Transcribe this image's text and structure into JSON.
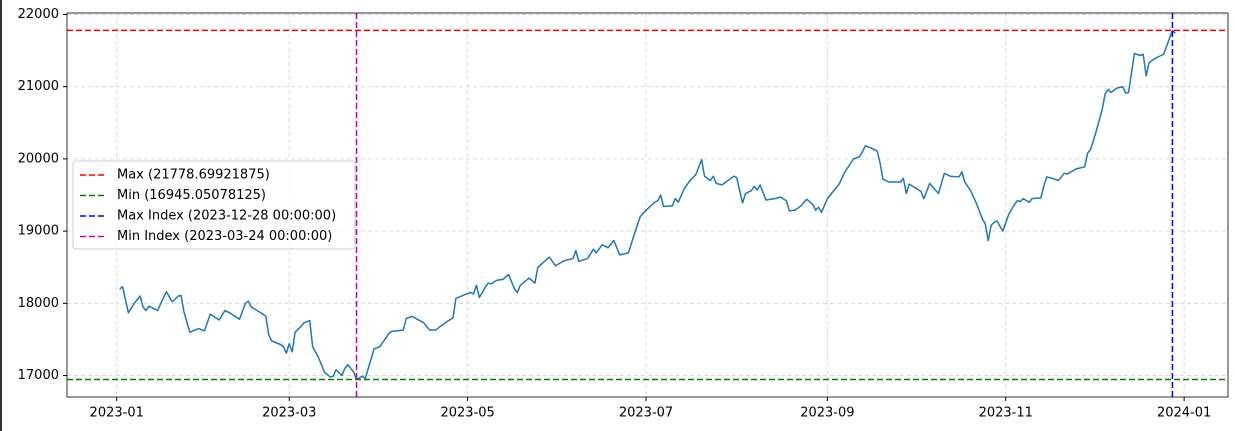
{
  "chart_data": {
    "type": "line",
    "color": "#1f77b4",
    "x": [
      "2023-01-02",
      "2023-01-03",
      "2023-01-04",
      "2023-01-05",
      "2023-01-07",
      "2023-01-09",
      "2023-01-10",
      "2023-01-11",
      "2023-01-12",
      "2023-01-15",
      "2023-01-17",
      "2023-01-18",
      "2023-01-20",
      "2023-01-22",
      "2023-01-23",
      "2023-01-24",
      "2023-01-26",
      "2023-01-29",
      "2023-01-31",
      "2023-02-02",
      "2023-02-05",
      "2023-02-07",
      "2023-02-09",
      "2023-02-12",
      "2023-02-14",
      "2023-02-15",
      "2023-02-16",
      "2023-02-20",
      "2023-02-21",
      "2023-02-22",
      "2023-02-23",
      "2023-02-26",
      "2023-02-27",
      "2023-02-28",
      "2023-03-01",
      "2023-03-02",
      "2023-03-03",
      "2023-03-05",
      "2023-03-06",
      "2023-03-08",
      "2023-03-09",
      "2023-03-11",
      "2023-03-13",
      "2023-03-15",
      "2023-03-16",
      "2023-03-17",
      "2023-03-19",
      "2023-03-20",
      "2023-03-21",
      "2023-03-23",
      "2023-03-24",
      "2023-03-26",
      "2023-03-27",
      "2023-03-30",
      "2023-04-01",
      "2023-04-04",
      "2023-04-05",
      "2023-04-09",
      "2023-04-10",
      "2023-04-12",
      "2023-04-16",
      "2023-04-18",
      "2023-04-20",
      "2023-04-23",
      "2023-04-26",
      "2023-04-27",
      "2023-04-30",
      "2023-05-02",
      "2023-05-03",
      "2023-05-04",
      "2023-05-05",
      "2023-05-07",
      "2023-05-08",
      "2023-05-09",
      "2023-05-11",
      "2023-05-13",
      "2023-05-15",
      "2023-05-17",
      "2023-05-18",
      "2023-05-19",
      "2023-05-22",
      "2023-05-24",
      "2023-05-25",
      "2023-05-29",
      "2023-05-31",
      "2023-06-03",
      "2023-06-06",
      "2023-06-07",
      "2023-06-08",
      "2023-06-11",
      "2023-06-13",
      "2023-06-14",
      "2023-06-16",
      "2023-06-18",
      "2023-06-20",
      "2023-06-22",
      "2023-06-25",
      "2023-06-27",
      "2023-06-29",
      "2023-07-01",
      "2023-07-04",
      "2023-07-05",
      "2023-07-06",
      "2023-07-07",
      "2023-07-10",
      "2023-07-11",
      "2023-07-12",
      "2023-07-14",
      "2023-07-16",
      "2023-07-18",
      "2023-07-20",
      "2023-07-21",
      "2023-07-23",
      "2023-07-24",
      "2023-07-25",
      "2023-07-27",
      "2023-07-29",
      "2023-07-31",
      "2023-08-01",
      "2023-08-03",
      "2023-08-04",
      "2023-08-06",
      "2023-08-07",
      "2023-08-08",
      "2023-08-09",
      "2023-08-11",
      "2023-08-14",
      "2023-08-16",
      "2023-08-18",
      "2023-08-19",
      "2023-08-21",
      "2023-08-23",
      "2023-08-24",
      "2023-08-25",
      "2023-08-27",
      "2023-08-28",
      "2023-08-29",
      "2023-08-30",
      "2023-09-01",
      "2023-09-03",
      "2023-09-05",
      "2023-09-07",
      "2023-09-09",
      "2023-09-10",
      "2023-09-12",
      "2023-09-13",
      "2023-09-14",
      "2023-09-16",
      "2023-09-18",
      "2023-09-19",
      "2023-09-20",
      "2023-09-22",
      "2023-09-24",
      "2023-09-26",
      "2023-09-27",
      "2023-09-28",
      "2023-09-29",
      "2023-10-01",
      "2023-10-03",
      "2023-10-04",
      "2023-10-06",
      "2023-10-09",
      "2023-10-11",
      "2023-10-13",
      "2023-10-16",
      "2023-10-17",
      "2023-10-18",
      "2023-10-20",
      "2023-10-22",
      "2023-10-24",
      "2023-10-25",
      "2023-10-26",
      "2023-10-27",
      "2023-10-28",
      "2023-10-29",
      "2023-10-31",
      "2023-11-02",
      "2023-11-04",
      "2023-11-05",
      "2023-11-06",
      "2023-11-07",
      "2023-11-09",
      "2023-11-10",
      "2023-11-13",
      "2023-11-14",
      "2023-11-15",
      "2023-11-17",
      "2023-11-19",
      "2023-11-21",
      "2023-11-22",
      "2023-11-25",
      "2023-11-28",
      "2023-11-29",
      "2023-11-30",
      "2023-12-02",
      "2023-12-04",
      "2023-12-05",
      "2023-12-06",
      "2023-12-07",
      "2023-12-09",
      "2023-12-11",
      "2023-12-12",
      "2023-12-13",
      "2023-12-15",
      "2023-12-17",
      "2023-12-18",
      "2023-12-19",
      "2023-12-20",
      "2023-12-22",
      "2023-12-24",
      "2023-12-25",
      "2023-12-28",
      "2023-12-29"
    ],
    "values": [
      18200,
      18230,
      18050,
      17870,
      18000,
      18100,
      17950,
      17900,
      17960,
      17900,
      18080,
      18160,
      18020,
      18100,
      18110,
      17880,
      17600,
      17650,
      17620,
      17850,
      17770,
      17900,
      17860,
      17780,
      18000,
      18030,
      17950,
      17850,
      17820,
      17560,
      17480,
      17430,
      17400,
      17310,
      17440,
      17330,
      17600,
      17680,
      17730,
      17760,
      17400,
      17250,
      17050,
      16980,
      16990,
      17080,
      17000,
      17100,
      17150,
      17050,
      16945.05078125,
      16990,
      16960,
      17370,
      17400,
      17580,
      17610,
      17630,
      17790,
      17820,
      17730,
      17630,
      17630,
      17720,
      17800,
      18070,
      18120,
      18150,
      18130,
      18250,
      18080,
      18220,
      18280,
      18270,
      18320,
      18330,
      18400,
      18200,
      18150,
      18250,
      18350,
      18280,
      18500,
      18640,
      18520,
      18590,
      18620,
      18730,
      18580,
      18620,
      18750,
      18700,
      18810,
      18770,
      18870,
      18670,
      18700,
      18960,
      19200,
      19290,
      19400,
      19420,
      19500,
      19340,
      19350,
      19450,
      19400,
      19580,
      19700,
      19780,
      19990,
      19760,
      19700,
      19760,
      19660,
      19640,
      19700,
      19760,
      19740,
      19390,
      19520,
      19560,
      19620,
      19570,
      19640,
      19430,
      19450,
      19470,
      19420,
      19280,
      19290,
      19350,
      19400,
      19440,
      19370,
      19290,
      19330,
      19260,
      19450,
      19550,
      19650,
      19820,
      19940,
      20000,
      20030,
      20100,
      20180,
      20150,
      20110,
      19950,
      19720,
      19680,
      19680,
      19680,
      19730,
      19520,
      19650,
      19600,
      19550,
      19450,
      19660,
      19520,
      19800,
      19760,
      19750,
      19820,
      19680,
      19560,
      19380,
      19170,
      19100,
      18870,
      19080,
      19120,
      19140,
      19000,
      19230,
      19370,
      19420,
      19410,
      19450,
      19400,
      19450,
      19460,
      19620,
      19750,
      19730,
      19700,
      19800,
      19790,
      19860,
      19890,
      20080,
      20130,
      20390,
      20690,
      20900,
      20960,
      20920,
      20980,
      21000,
      20910,
      20920,
      21460,
      21430,
      21450,
      21150,
      21330,
      21390,
      21430,
      21450,
      21778.69921875,
      21740
    ],
    "xlim": [
      "2022-12-15",
      "2024-01-16"
    ],
    "xticks": [
      {
        "value": "2023-01-01",
        "label": "2023-01"
      },
      {
        "value": "2023-03-01",
        "label": "2023-03"
      },
      {
        "value": "2023-05-01",
        "label": "2023-05"
      },
      {
        "value": "2023-07-01",
        "label": "2023-07"
      },
      {
        "value": "2023-09-01",
        "label": "2023-09"
      },
      {
        "value": "2023-11-01",
        "label": "2023-11"
      },
      {
        "value": "2024-01-01",
        "label": "2024-01"
      }
    ],
    "ylim": [
      16703,
      22020
    ],
    "yticks": [
      17000,
      18000,
      19000,
      20000,
      21000,
      22000
    ],
    "grid": true,
    "legend": "center left",
    "reference_lines": [
      {
        "label": "Max (21778.69921875)",
        "value": 21778.69921875,
        "orientation": "horizontal",
        "color": "#ff0000"
      },
      {
        "label": "Min (16945.05078125)",
        "value": 16945.05078125,
        "orientation": "horizontal",
        "color": "#008000"
      },
      {
        "label": "Max Index (2023-12-28 00:00:00)",
        "value": "2023-12-28",
        "orientation": "vertical",
        "color": "#0000ff"
      },
      {
        "label": "Min Index (2023-03-24 00:00:00)",
        "value": "2023-03-24",
        "orientation": "vertical",
        "color": "#bf00bf"
      }
    ]
  }
}
